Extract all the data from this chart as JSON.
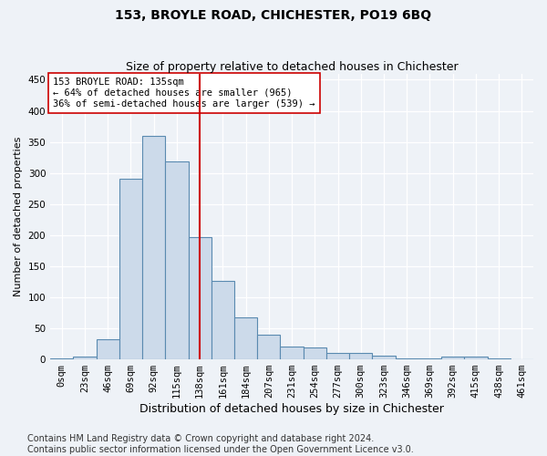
{
  "title": "153, BROYLE ROAD, CHICHESTER, PO19 6BQ",
  "subtitle": "Size of property relative to detached houses in Chichester",
  "xlabel": "Distribution of detached houses by size in Chichester",
  "ylabel": "Number of detached properties",
  "bar_labels": [
    "0sqm",
    "23sqm",
    "46sqm",
    "69sqm",
    "92sqm",
    "115sqm",
    "138sqm",
    "161sqm",
    "184sqm",
    "207sqm",
    "231sqm",
    "254sqm",
    "277sqm",
    "300sqm",
    "323sqm",
    "346sqm",
    "369sqm",
    "392sqm",
    "415sqm",
    "438sqm",
    "461sqm"
  ],
  "bar_heights": [
    2,
    5,
    33,
    290,
    360,
    318,
    197,
    127,
    68,
    40,
    20,
    19,
    10,
    10,
    6,
    2,
    2,
    5,
    4,
    1,
    0
  ],
  "bar_color": "#ccdaea",
  "bar_edge_color": "#5a8ab0",
  "vline_x": 6,
  "vline_color": "#cc0000",
  "annotation_text": "153 BROYLE ROAD: 135sqm\n← 64% of detached houses are smaller (965)\n36% of semi-detached houses are larger (539) →",
  "annotation_box_color": "#ffffff",
  "annotation_box_edge": "#cc0000",
  "footer_text": "Contains HM Land Registry data © Crown copyright and database right 2024.\nContains public sector information licensed under the Open Government Licence v3.0.",
  "ylim": [
    0,
    460
  ],
  "yticks": [
    0,
    50,
    100,
    150,
    200,
    250,
    300,
    350,
    400,
    450
  ],
  "title_fontsize": 10,
  "subtitle_fontsize": 9,
  "xlabel_fontsize": 9,
  "ylabel_fontsize": 8,
  "tick_fontsize": 7.5,
  "annotation_fontsize": 7.5,
  "footer_fontsize": 7,
  "bg_color": "#eef2f7",
  "grid_color": "#ffffff"
}
